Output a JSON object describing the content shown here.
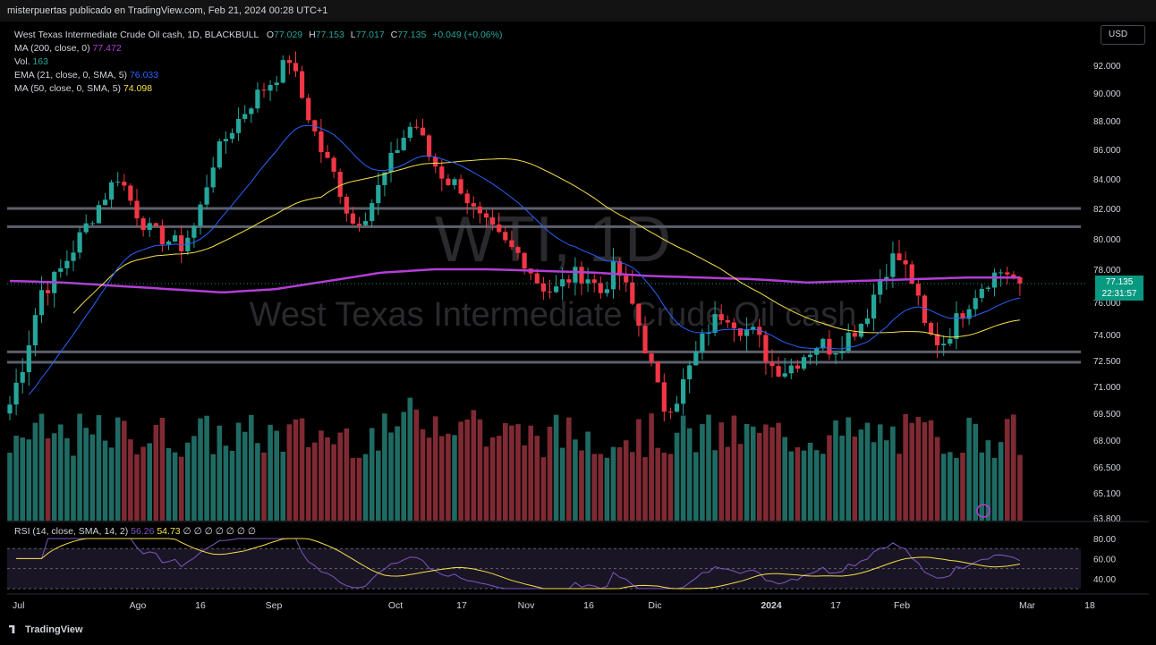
{
  "header": {
    "publisher": "misterpuertas publicado en TradingView.com, Feb 21, 2024 00:28 UTC+1"
  },
  "legend": {
    "symbol": "West Texas Intermediate Crude Oil cash, 1D, BLACKBULL",
    "ohlc": {
      "o_label": "O",
      "o": "77.029",
      "h_label": "H",
      "h": "77.153",
      "l_label": "L",
      "l": "77.017",
      "c_label": "C",
      "c": "77.135",
      "change": "+0.049 (+0.06%)"
    },
    "indicators": [
      {
        "label": "MA (200, close, 0)",
        "value": "77.472",
        "color": "#b33ed6"
      },
      {
        "label": "Vol.",
        "value": "163",
        "color": "#26a69a"
      },
      {
        "label": "EMA (21, close, 0, SMA, 5)",
        "value": "76.033",
        "color": "#2962ff"
      },
      {
        "label": "MA (50, close, 0, SMA, 5)",
        "value": "74.098",
        "color": "#f7e04a"
      }
    ],
    "rsi": {
      "label": "RSI (14, close, SMA, 14, 2)",
      "value1": "56.26",
      "value2": "54.73",
      "extra": "∅ ∅ ∅ ∅ ∅ ∅ ∅"
    }
  },
  "watermark": {
    "big": "WTI, 1D",
    "small": "West Texas Intermediate Crude Oil cash"
  },
  "currency_button": "USD",
  "last_price": {
    "price": "77.135",
    "countdown": "22:31:57"
  },
  "footer": {
    "logo_text": "TradingView"
  },
  "colors": {
    "up": "#26a69a",
    "down": "#f23645",
    "ma200": "#b33ed6",
    "ema21": "#2962ff",
    "ma50": "#f7e04a",
    "rsi": "#7e57c2",
    "rsi_ma": "#f7e04a"
  },
  "chart_data": {
    "type": "candlestick",
    "y_ticks": [
      "92.000",
      "90.000",
      "88.000",
      "86.000",
      "84.000",
      "82.000",
      "80.000",
      "78.000",
      "76.000",
      "74.000",
      "72.500",
      "71.000",
      "69.500",
      "68.000",
      "66.500",
      "65.100",
      "63.800"
    ],
    "x_ticks": [
      "Jul",
      "Ago",
      "16",
      "Sep",
      "Oct",
      "17",
      "Nov",
      "16",
      "Dic",
      "2024",
      "17",
      "Feb",
      "Mar",
      "18"
    ],
    "horizontal_levels": [
      82.0,
      80.8,
      73.0,
      72.4
    ],
    "keypoints": [
      70,
      72.8,
      76.7,
      77.5,
      79.2,
      81,
      82.7,
      84.3,
      82,
      80.5,
      80,
      79.5,
      81,
      85,
      87,
      88.5,
      90,
      91,
      92.5,
      89,
      86,
      84,
      81,
      81.8,
      84,
      86.3,
      88,
      85.5,
      84,
      83.5,
      81.5,
      80.5,
      79.5,
      78.8,
      77.2,
      76.6,
      77.5,
      77.8,
      76.6,
      78.2,
      76,
      73,
      69.8,
      70.5,
      72.5,
      74.5,
      75.5,
      74.5,
      74,
      72.2,
      72,
      72.8,
      73.5,
      73.2,
      74,
      75,
      77.5,
      79,
      77.5,
      74,
      73.5,
      75,
      76.5,
      77.5,
      78,
      77.1
    ],
    "ma200_keypoints": [
      77.3,
      77.2,
      77.0,
      76.8,
      76.6,
      76.8,
      77.3,
      77.8,
      78.0,
      78.0,
      77.9,
      77.8,
      77.6,
      77.5,
      77.4,
      77.2,
      77.3,
      77.4,
      77.5,
      77.5
    ],
    "rsi_range": [
      30,
      80
    ],
    "rsi_levels": [
      70,
      50,
      30
    ],
    "rsi_ticks": [
      "80.00",
      "60.00",
      "40.00"
    ]
  }
}
